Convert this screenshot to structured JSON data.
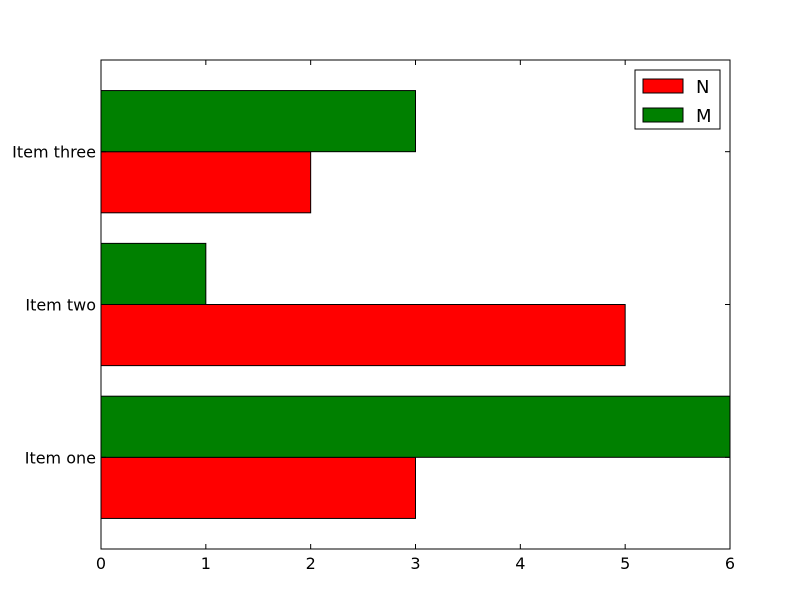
{
  "chart_data": {
    "type": "bar",
    "orientation": "horizontal",
    "categories": [
      "Item one",
      "Item two",
      "Item three"
    ],
    "series": [
      {
        "name": "N",
        "values": [
          3,
          5,
          2
        ],
        "color": "#ff0000"
      },
      {
        "name": "M",
        "values": [
          6,
          1,
          3
        ],
        "color": "#008000"
      }
    ],
    "x_ticks": [
      "0",
      "1",
      "2",
      "3",
      "4",
      "5",
      "6"
    ],
    "xlim": [
      0,
      6
    ],
    "ylim": [
      -0.6,
      2.6
    ],
    "grid": false,
    "legend_position": "top-right",
    "title": "",
    "xlabel": "",
    "ylabel": ""
  }
}
